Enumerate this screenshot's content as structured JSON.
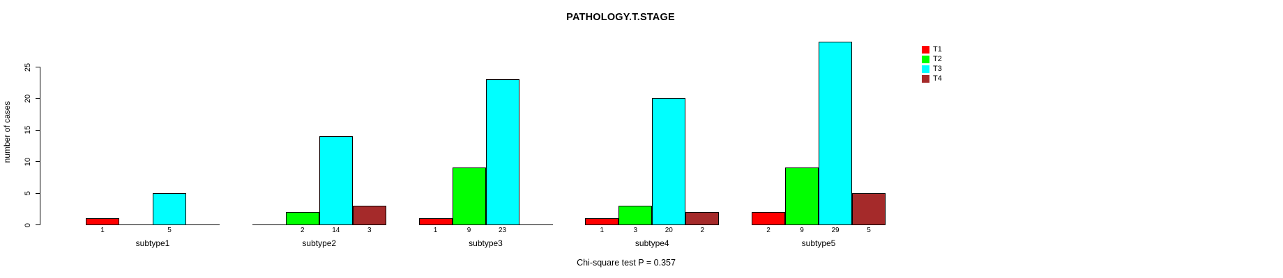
{
  "chart_data": {
    "type": "bar",
    "title": "PATHOLOGY.T.STAGE",
    "xlabel": "",
    "ylabel": "number of cases",
    "categories": [
      "subtype1",
      "subtype2",
      "subtype3",
      "subtype4",
      "subtype5"
    ],
    "series": [
      {
        "name": "T1",
        "color": "#FF0000",
        "values": [
          1,
          0,
          1,
          1,
          2
        ]
      },
      {
        "name": "T2",
        "color": "#00FF00",
        "values": [
          0,
          2,
          9,
          3,
          9
        ]
      },
      {
        "name": "T3",
        "color": "#00FFFF",
        "values": [
          5,
          14,
          23,
          20,
          29
        ]
      },
      {
        "name": "T4",
        "color": "#A52A2A",
        "values": [
          0,
          3,
          0,
          2,
          5
        ]
      }
    ],
    "bar_value_labels": [
      [
        "1",
        "",
        "1",
        "1",
        "2"
      ],
      [
        "",
        "2",
        "9",
        "3",
        "9"
      ],
      [
        "5",
        "14",
        "23",
        "20",
        "29"
      ],
      [
        "",
        "3",
        "",
        "2",
        "5"
      ]
    ],
    "yticks": [
      0,
      5,
      10,
      15,
      20,
      25
    ],
    "ylim": [
      0,
      29
    ],
    "grid": false,
    "legend_position": "right",
    "legend_entries": [
      "T1",
      "T2",
      "T3",
      "T4"
    ],
    "annotation": "Chi-square test P = 0.357"
  }
}
